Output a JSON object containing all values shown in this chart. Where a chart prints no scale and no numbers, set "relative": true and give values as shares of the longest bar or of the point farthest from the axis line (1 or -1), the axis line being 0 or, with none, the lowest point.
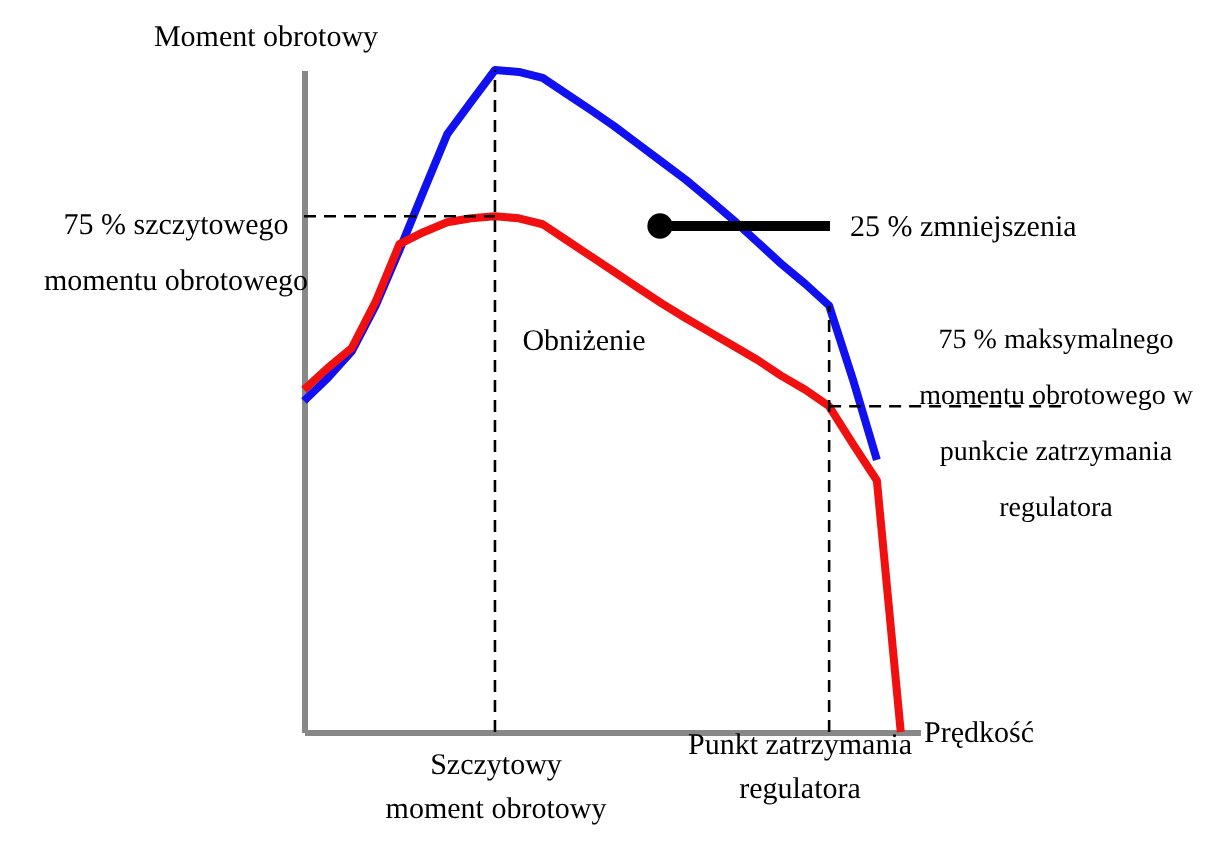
{
  "chart_data": {
    "type": "line",
    "relative": true,
    "xlabel": "Prędkość",
    "ylabel": "Moment obrotowy",
    "grid": false,
    "marker": "none",
    "line_style": "solid",
    "categories": [
      null,
      null,
      null,
      null,
      null,
      null,
      null,
      null,
      null,
      null,
      null,
      null,
      null,
      null,
      null,
      null,
      null,
      null,
      null,
      null,
      null,
      null,
      null,
      null,
      null,
      null
    ],
    "series": [
      {
        "color": "#1010f0",
        "values": [
          0.5,
          0.535,
          0.575,
          0.644,
          0.728,
          0.816,
          0.903,
          0.952,
          1.0,
          0.997,
          0.988,
          0.964,
          0.94,
          0.915,
          0.888,
          0.861,
          0.834,
          0.804,
          0.773,
          0.74,
          0.707,
          0.677,
          0.644,
          0.532,
          0.411,
          null
        ]
      },
      {
        "color": "#f01010",
        "values": [
          0.517,
          0.55,
          0.58,
          0.65,
          0.737,
          0.755,
          0.77,
          0.776,
          0.779,
          0.776,
          0.767,
          0.743,
          0.719,
          0.695,
          0.671,
          0.647,
          0.625,
          0.604,
          0.583,
          0.562,
          0.538,
          0.517,
          0.492,
          0.435,
          0.38,
          0
        ]
      }
    ],
    "ref_lines": [
      {
        "axis": "y",
        "value": 0.779,
        "label": "75 % szczytowego momentu obrotowego",
        "line_style": "dashed",
        "color": "#000000"
      },
      {
        "axis": "y",
        "value": 0.492,
        "label": "75 % maksymalnego momentu obrotowego w punkcie zatrzymania regulatora",
        "line_style": "dashed",
        "color": "#000000"
      }
    ],
    "annotations": [
      "Szczytowy moment obrotowy",
      "Punkt zatrzymania regulatora",
      "Obniżenie",
      "25 % zmniejszenia"
    ]
  }
}
